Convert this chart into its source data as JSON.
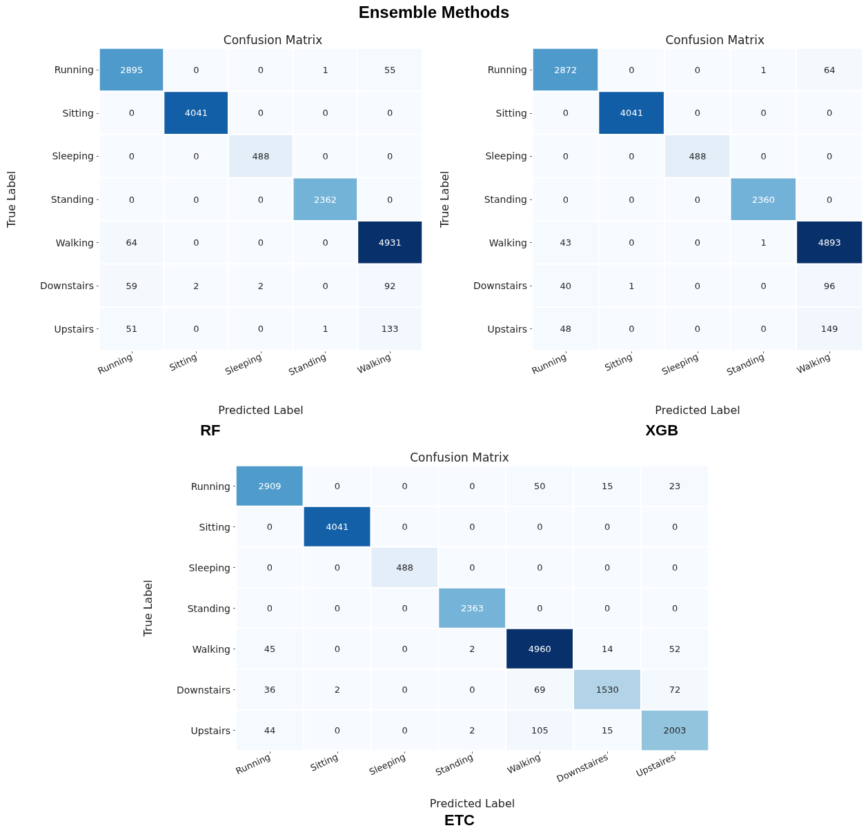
{
  "chart_data": [
    {
      "type": "heatmap",
      "title": "Confusion Matrix",
      "subtitle": "RF",
      "annotations": [
        "Ensemble Methods"
      ],
      "xlabel": "Predicted Label",
      "ylabel": "True Label",
      "categories": [
        "Running",
        "Sitting",
        "Sleeping",
        "Standing",
        "Walking"
      ],
      "y_categories": [
        "Running",
        "Sitting",
        "Sleeping",
        "Standing",
        "Walking",
        "Downstairs",
        "Upstairs"
      ],
      "cells": [
        [
          2895,
          0,
          0,
          1,
          55
        ],
        [
          0,
          4041,
          0,
          0,
          0
        ],
        [
          0,
          0,
          488,
          0,
          0
        ],
        [
          0,
          0,
          0,
          2362,
          0
        ],
        [
          64,
          0,
          0,
          0,
          4931
        ],
        [
          59,
          2,
          2,
          0,
          92
        ],
        [
          51,
          0,
          0,
          1,
          133
        ]
      ],
      "data_labels": true
    },
    {
      "type": "heatmap",
      "title": "Confusion Matrix",
      "subtitle": "XGB",
      "xlabel": "Predicted Label",
      "ylabel": "True Label",
      "categories": [
        "Running",
        "Sitting",
        "Sleeping",
        "Standing",
        "Walking"
      ],
      "y_categories": [
        "Running",
        "Sitting",
        "Sleeping",
        "Standing",
        "Walking",
        "Downstairs",
        "Upstairs"
      ],
      "cells": [
        [
          2872,
          0,
          0,
          1,
          64
        ],
        [
          0,
          4041,
          0,
          0,
          0
        ],
        [
          0,
          0,
          488,
          0,
          0
        ],
        [
          0,
          0,
          0,
          2360,
          0
        ],
        [
          43,
          0,
          0,
          1,
          4893
        ],
        [
          40,
          1,
          0,
          0,
          96
        ],
        [
          48,
          0,
          0,
          0,
          149
        ]
      ],
      "data_labels": true
    },
    {
      "type": "heatmap",
      "title": "Confusion Matrix",
      "subtitle": "ETC",
      "xlabel": "Predicted Label",
      "ylabel": "True Label",
      "categories": [
        "Running",
        "Sitting",
        "Sleeping",
        "Standing",
        "Walking",
        "Downstaires",
        "Upstaires"
      ],
      "y_categories": [
        "Running",
        "Sitting",
        "Sleeping",
        "Standing",
        "Walking",
        "Downstairs",
        "Upstairs"
      ],
      "cells": [
        [
          2909,
          0,
          0,
          0,
          50,
          15,
          23
        ],
        [
          0,
          4041,
          0,
          0,
          0,
          0,
          0
        ],
        [
          0,
          0,
          488,
          0,
          0,
          0,
          0
        ],
        [
          0,
          0,
          0,
          2363,
          0,
          0,
          0
        ],
        [
          45,
          0,
          0,
          2,
          4960,
          14,
          52
        ],
        [
          36,
          2,
          0,
          0,
          69,
          1530,
          72
        ],
        [
          44,
          0,
          0,
          2,
          105,
          15,
          2003
        ]
      ],
      "data_labels": true
    }
  ]
}
